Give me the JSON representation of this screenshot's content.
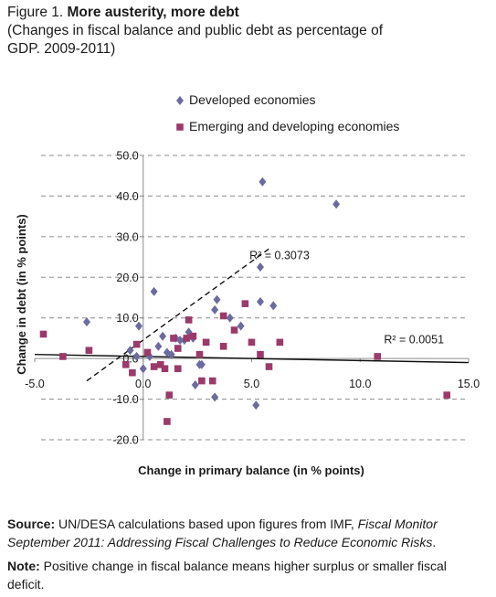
{
  "figure": {
    "number": "Figure 1.",
    "title": "More austerity, more debt",
    "subtitle": "(Changes in fiscal balance and public debt as percentage of GDP. 2009-2011)"
  },
  "chart_data": {
    "type": "scatter",
    "xlabel": "Change in primary balance (in % points)",
    "ylabel": "Change in debt (in % points)",
    "xlim": [
      -5,
      15
    ],
    "ylim": [
      -20,
      50
    ],
    "x_ticks": [
      -5,
      0,
      5,
      10,
      15
    ],
    "x_tick_labels": [
      "-5.0",
      "0.0",
      "5.0",
      "10.0",
      "15.0"
    ],
    "y_ticks": [
      -20,
      -10,
      0,
      10,
      20,
      30,
      40,
      50
    ],
    "y_tick_labels": [
      "-20.0",
      "-10.0",
      "0.0",
      "10.0",
      "20.0",
      "30.0",
      "40.0",
      "50.0"
    ],
    "grid": "horizontal dashed",
    "legend_position": "top",
    "series": [
      {
        "name": "Developed economies",
        "marker": "diamond",
        "color": "#6b6b9e",
        "points": [
          [
            -2.6,
            9.0
          ],
          [
            -0.2,
            8.0
          ],
          [
            -0.6,
            2.0
          ],
          [
            -0.3,
            0.5
          ],
          [
            0.0,
            -2.5
          ],
          [
            0.3,
            0.5
          ],
          [
            0.5,
            16.5
          ],
          [
            0.7,
            3.0
          ],
          [
            0.9,
            5.5
          ],
          [
            1.1,
            1.5
          ],
          [
            1.3,
            1.0
          ],
          [
            1.5,
            5.0
          ],
          [
            1.7,
            4.5
          ],
          [
            1.9,
            4.5
          ],
          [
            2.1,
            6.5
          ],
          [
            2.3,
            5.0
          ],
          [
            2.4,
            -6.5
          ],
          [
            2.6,
            -1.5
          ],
          [
            2.7,
            -1.5
          ],
          [
            3.3,
            12.0
          ],
          [
            3.4,
            14.5
          ],
          [
            3.3,
            -9.5
          ],
          [
            4.0,
            10.0
          ],
          [
            4.5,
            8.0
          ],
          [
            5.2,
            -11.5
          ],
          [
            5.4,
            22.5
          ],
          [
            5.4,
            14.0
          ],
          [
            5.5,
            43.5
          ],
          [
            6.0,
            13.0
          ],
          [
            8.9,
            38.0
          ]
        ]
      },
      {
        "name": "Emerging and developing economies",
        "marker": "square",
        "color": "#9a3a6a",
        "points": [
          [
            -4.6,
            6.0
          ],
          [
            -3.7,
            0.5
          ],
          [
            -2.5,
            2.0
          ],
          [
            -0.8,
            -1.5
          ],
          [
            -0.5,
            -3.5
          ],
          [
            -0.3,
            3.5
          ],
          [
            0.2,
            1.5
          ],
          [
            0.5,
            -2.0
          ],
          [
            0.8,
            -1.5
          ],
          [
            1.0,
            -2.5
          ],
          [
            1.1,
            -15.5
          ],
          [
            1.2,
            -9.0
          ],
          [
            1.4,
            5.0
          ],
          [
            1.6,
            2.5
          ],
          [
            1.6,
            -2.5
          ],
          [
            2.0,
            5.0
          ],
          [
            2.1,
            9.5
          ],
          [
            2.3,
            5.5
          ],
          [
            2.6,
            1.0
          ],
          [
            2.7,
            -5.5
          ],
          [
            2.9,
            4.0
          ],
          [
            3.2,
            -5.5
          ],
          [
            3.7,
            10.5
          ],
          [
            3.7,
            3.0
          ],
          [
            4.2,
            7.0
          ],
          [
            4.7,
            13.5
          ],
          [
            5.0,
            4.0
          ],
          [
            5.4,
            1.0
          ],
          [
            5.8,
            -2.0
          ],
          [
            6.3,
            4.0
          ],
          [
            10.8,
            0.5
          ],
          [
            14.0,
            -9.0
          ]
        ]
      }
    ],
    "trendlines": [
      {
        "label": "R² = 0.3073",
        "style": "dashed",
        "from": [
          -2.6,
          -5.5
        ],
        "to": [
          5.8,
          27.0
        ]
      },
      {
        "label": "R² = 0.0051",
        "style": "solid",
        "from": [
          -5.0,
          1.0
        ],
        "to": [
          15.0,
          -1.0
        ]
      }
    ]
  },
  "footer": {
    "source_label": "Source:",
    "source_text": "UN/DESA calculations based upon figures from IMF,",
    "source_italic": "Fiscal Monitor September 2011: Addressing Fiscal Challenges to Reduce Economic Risks",
    "source_end": ".",
    "note_label": "Note:",
    "note_text": "Positive change in fiscal balance means higher surplus or smaller fiscal deficit."
  }
}
